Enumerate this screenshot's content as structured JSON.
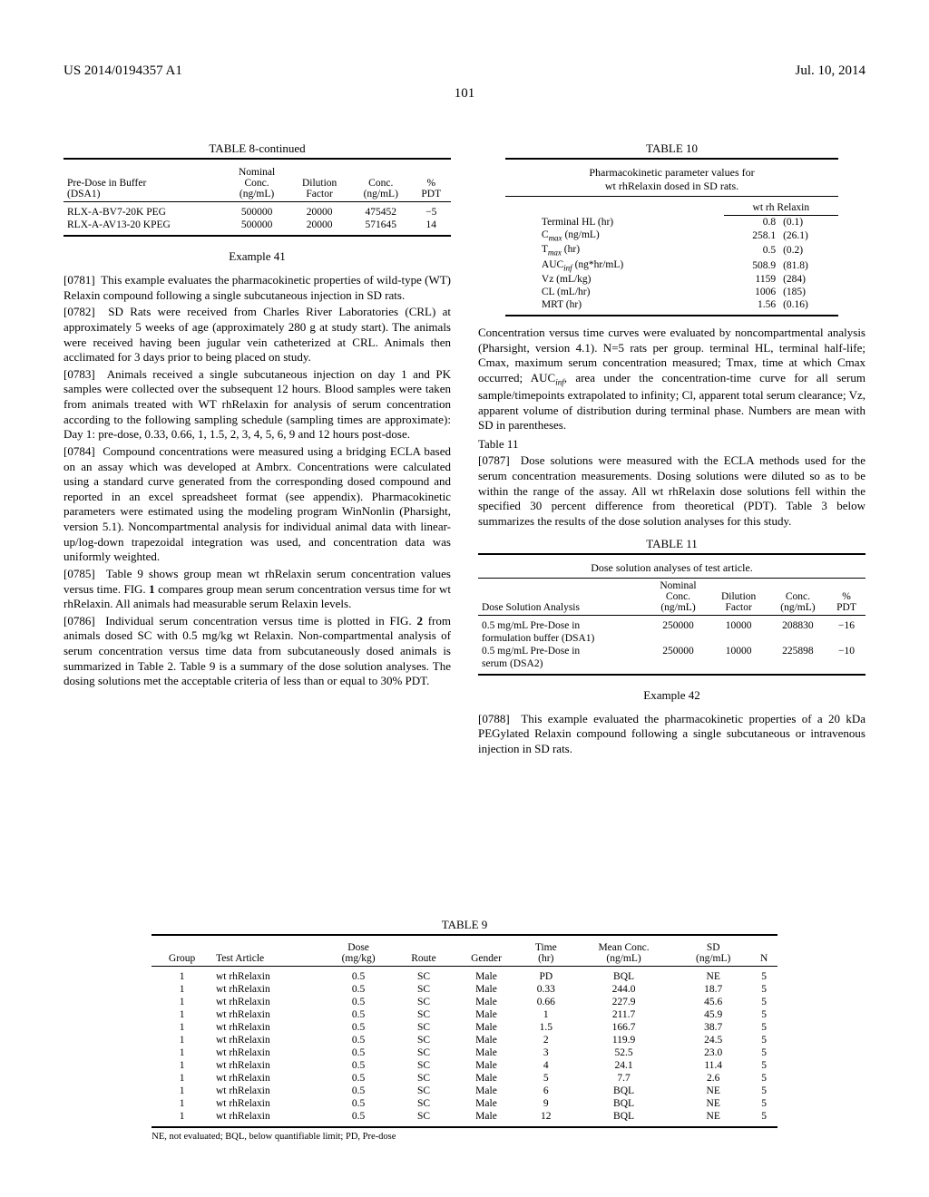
{
  "header": {
    "left": "US 2014/0194357 A1",
    "right": "Jul. 10, 2014"
  },
  "page_number": "101",
  "table8": {
    "title": "TABLE 8-continued",
    "columns": [
      "Pre-Dose in Buffer (DSA1)",
      "Nominal Conc. (ng/mL)",
      "Dilution Factor",
      "Conc. (ng/mL)",
      "% PDT"
    ],
    "col0a": "Pre-Dose in Buffer",
    "col0b": "(DSA1)",
    "col1a": "Nominal",
    "col1b": "Conc.",
    "col1c": "(ng/mL)",
    "col2a": "Dilution",
    "col2b": "Factor",
    "col3a": "Conc.",
    "col3b": "(ng/mL)",
    "col4a": "%",
    "col4b": "PDT",
    "rows": [
      [
        "RLX-A-BV7-20K PEG",
        "500000",
        "20000",
        "475452",
        "−5"
      ],
      [
        "RLX-A-AV13-20 KPEG",
        "500000",
        "20000",
        "571645",
        "14"
      ]
    ]
  },
  "example41_title": "Example 41",
  "p0781_num": "[0781]",
  "p0781": "This example evaluates the pharmacokinetic properties of wild-type (WT) Relaxin compound following a single subcutaneous injection in SD rats.",
  "p0782_num": "[0782]",
  "p0782": "SD Rats were received from Charles River Laboratories (CRL) at approximately 5 weeks of age (approximately 280 g at study start). The animals were received having been jugular vein catheterized at CRL. Animals then acclimated for 3 days prior to being placed on study.",
  "p0783_num": "[0783]",
  "p0783": "Animals received a single subcutaneous injection on day 1 and PK samples were collected over the subsequent 12 hours. Blood samples were taken from animals treated with WT rhRelaxin for analysis of serum concentration according to the following sampling schedule (sampling times are approximate): Day 1: pre-dose, 0.33, 0.66, 1, 1.5, 2, 3, 4, 5, 6, 9 and 12 hours post-dose.",
  "p0784_num": "[0784]",
  "p0784": "Compound concentrations were measured using a bridging ECLA based on an assay which was developed at Ambrx. Concentrations were calculated using a standard curve generated from the corresponding dosed compound and reported in an excel spreadsheet format (see appendix). Pharmacokinetic parameters were estimated using the modeling program WinNonlin (Pharsight, version 5.1). Noncompartmental analysis for individual animal data with linear-up/log-down trapezoidal integration was used, and concentration data was uniformly weighted.",
  "p0785_num": "[0785]",
  "p0785a": "Table 9 shows group mean wt rhRelaxin serum concentration values versus time. FIG. ",
  "p0785_fig1": "1",
  "p0785b": " compares group mean serum concentration versus time for wt rhRelaxin. All animals had measurable serum Relaxin levels.",
  "p0786_num": "[0786]",
  "p0786a": "Individual serum concentration versus time is plotted in FIG. ",
  "p0786_fig2": "2",
  "p0786b": " from animals dosed SC with 0.5 mg/kg wt Relaxin. Non-compartmental analysis of serum concentration versus time data from subcutaneously dosed animals is summarized in Table 2. Table 9 is a summary of the dose solution analyses. The dosing solutions met the acceptable criteria of less than or equal to 30% PDT.",
  "table10": {
    "title": "TABLE 10",
    "subtitle1": "Pharmacokinetic parameter values for",
    "subtitle2": "wt rhRelaxin dosed in SD rats.",
    "col_header": "wt rh Relaxin",
    "rows": [
      [
        "Terminal HL (hr)",
        "0.8",
        "(0.1)"
      ],
      [
        "C",
        "258.1",
        "(26.1)"
      ],
      [
        "T",
        "0.5",
        "(0.2)"
      ],
      [
        "AUC",
        "508.9",
        "(81.8)"
      ],
      [
        "Vz (mL/kg)",
        "1159",
        "(284)"
      ],
      [
        "CL (mL/hr)",
        "1006",
        "(185)"
      ],
      [
        "MRT (hr)",
        "1.56",
        "(0.16)"
      ]
    ],
    "cmax_sub": "max",
    "cmax_unit": " (ng/mL)",
    "tmax_sub": "max",
    "tmax_unit": " (hr)",
    "auc_sub": "inf",
    "auc_unit": " (ng*hr/mL)"
  },
  "after_t10": "Concentration versus time curves were evaluated by noncompartmental analysis (Pharsight, version 4.1). N=5 rats per group. terminal HL, terminal half-life; Cmax, maximum serum concentration measured; Tmax, time at which Cmax occurred; AUC",
  "after_t10_sub": "inf",
  "after_t10b": ", area under the concentration-time curve for all serum sample/timepoints extrapolated to infinity; Cl, apparent total serum clearance; Vz, apparent volume of distribution during terminal phase. Numbers are mean with SD in parentheses.",
  "table11_label": "Table 11",
  "p0787_num": "[0787]",
  "p0787": "Dose solutions were measured with the ECLA methods used for the serum concentration measurements. Dosing solutions were diluted so as to be within the range of the assay. All wt rhRelaxin dose solutions fell within the specified 30 percent difference from theoretical (PDT). Table 3 below summarizes the results of the dose solution analyses for this study.",
  "table11": {
    "title": "TABLE 11",
    "subtitle": "Dose solution analyses of test article.",
    "col0": "Dose Solution Analysis",
    "col1a": "Nominal",
    "col1b": "Conc.",
    "col1c": "(ng/mL)",
    "col2a": "Dilution",
    "col2b": "Factor",
    "col3a": "Conc.",
    "col3b": "(ng/mL)",
    "col4a": "%",
    "col4b": "PDT",
    "rows": [
      [
        "0.5 mg/mL Pre-Dose in formulation buffer (DSA1)",
        "250000",
        "10000",
        "208830",
        "−16"
      ],
      [
        "0.5 mg/mL Pre-Dose in serum (DSA2)",
        "250000",
        "10000",
        "225898",
        "−10"
      ]
    ],
    "r1a": "0.5 mg/mL Pre-Dose in",
    "r1b": "formulation buffer (DSA1)",
    "r2a": "0.5 mg/mL Pre-Dose in",
    "r2b": "serum (DSA2)"
  },
  "example42_title": "Example 42",
  "p0788_num": "[0788]",
  "p0788": "This example evaluated the pharmacokinetic properties of a 20 kDa PEGylated Relaxin compound following a single subcutaneous or intravenous injection in SD rats.",
  "table9": {
    "title": "TABLE 9",
    "columns": [
      "Group",
      "Test Article",
      "Dose (mg/kg)",
      "Route",
      "Gender",
      "Time (hr)",
      "Mean Conc. (ng/mL)",
      "SD (ng/mL)",
      "N"
    ],
    "h_group": "Group",
    "h_test": "Test Article",
    "h_dose_a": "Dose",
    "h_dose_b": "(mg/kg)",
    "h_route": "Route",
    "h_gender": "Gender",
    "h_time_a": "Time",
    "h_time_b": "(hr)",
    "h_mean_a": "Mean Conc.",
    "h_mean_b": "(ng/mL)",
    "h_sd_a": "SD",
    "h_sd_b": "(ng/mL)",
    "h_n": "N",
    "rows": [
      [
        "1",
        "wt rhRelaxin",
        "0.5",
        "SC",
        "Male",
        "PD",
        "BQL",
        "NE",
        "5"
      ],
      [
        "1",
        "wt rhRelaxin",
        "0.5",
        "SC",
        "Male",
        "0.33",
        "244.0",
        "18.7",
        "5"
      ],
      [
        "1",
        "wt rhRelaxin",
        "0.5",
        "SC",
        "Male",
        "0.66",
        "227.9",
        "45.6",
        "5"
      ],
      [
        "1",
        "wt rhRelaxin",
        "0.5",
        "SC",
        "Male",
        "1",
        "211.7",
        "45.9",
        "5"
      ],
      [
        "1",
        "wt rhRelaxin",
        "0.5",
        "SC",
        "Male",
        "1.5",
        "166.7",
        "38.7",
        "5"
      ],
      [
        "1",
        "wt rhRelaxin",
        "0.5",
        "SC",
        "Male",
        "2",
        "119.9",
        "24.5",
        "5"
      ],
      [
        "1",
        "wt rhRelaxin",
        "0.5",
        "SC",
        "Male",
        "3",
        "52.5",
        "23.0",
        "5"
      ],
      [
        "1",
        "wt rhRelaxin",
        "0.5",
        "SC",
        "Male",
        "4",
        "24.1",
        "11.4",
        "5"
      ],
      [
        "1",
        "wt rhRelaxin",
        "0.5",
        "SC",
        "Male",
        "5",
        "7.7",
        "2.6",
        "5"
      ],
      [
        "1",
        "wt rhRelaxin",
        "0.5",
        "SC",
        "Male",
        "6",
        "BQL",
        "NE",
        "5"
      ],
      [
        "1",
        "wt rhRelaxin",
        "0.5",
        "SC",
        "Male",
        "9",
        "BQL",
        "NE",
        "5"
      ],
      [
        "1",
        "wt rhRelaxin",
        "0.5",
        "SC",
        "Male",
        "12",
        "BQL",
        "NE",
        "5"
      ]
    ],
    "footnote": "NE, not evaluated; BQL, below quantifiable limit; PD, Pre-dose"
  }
}
